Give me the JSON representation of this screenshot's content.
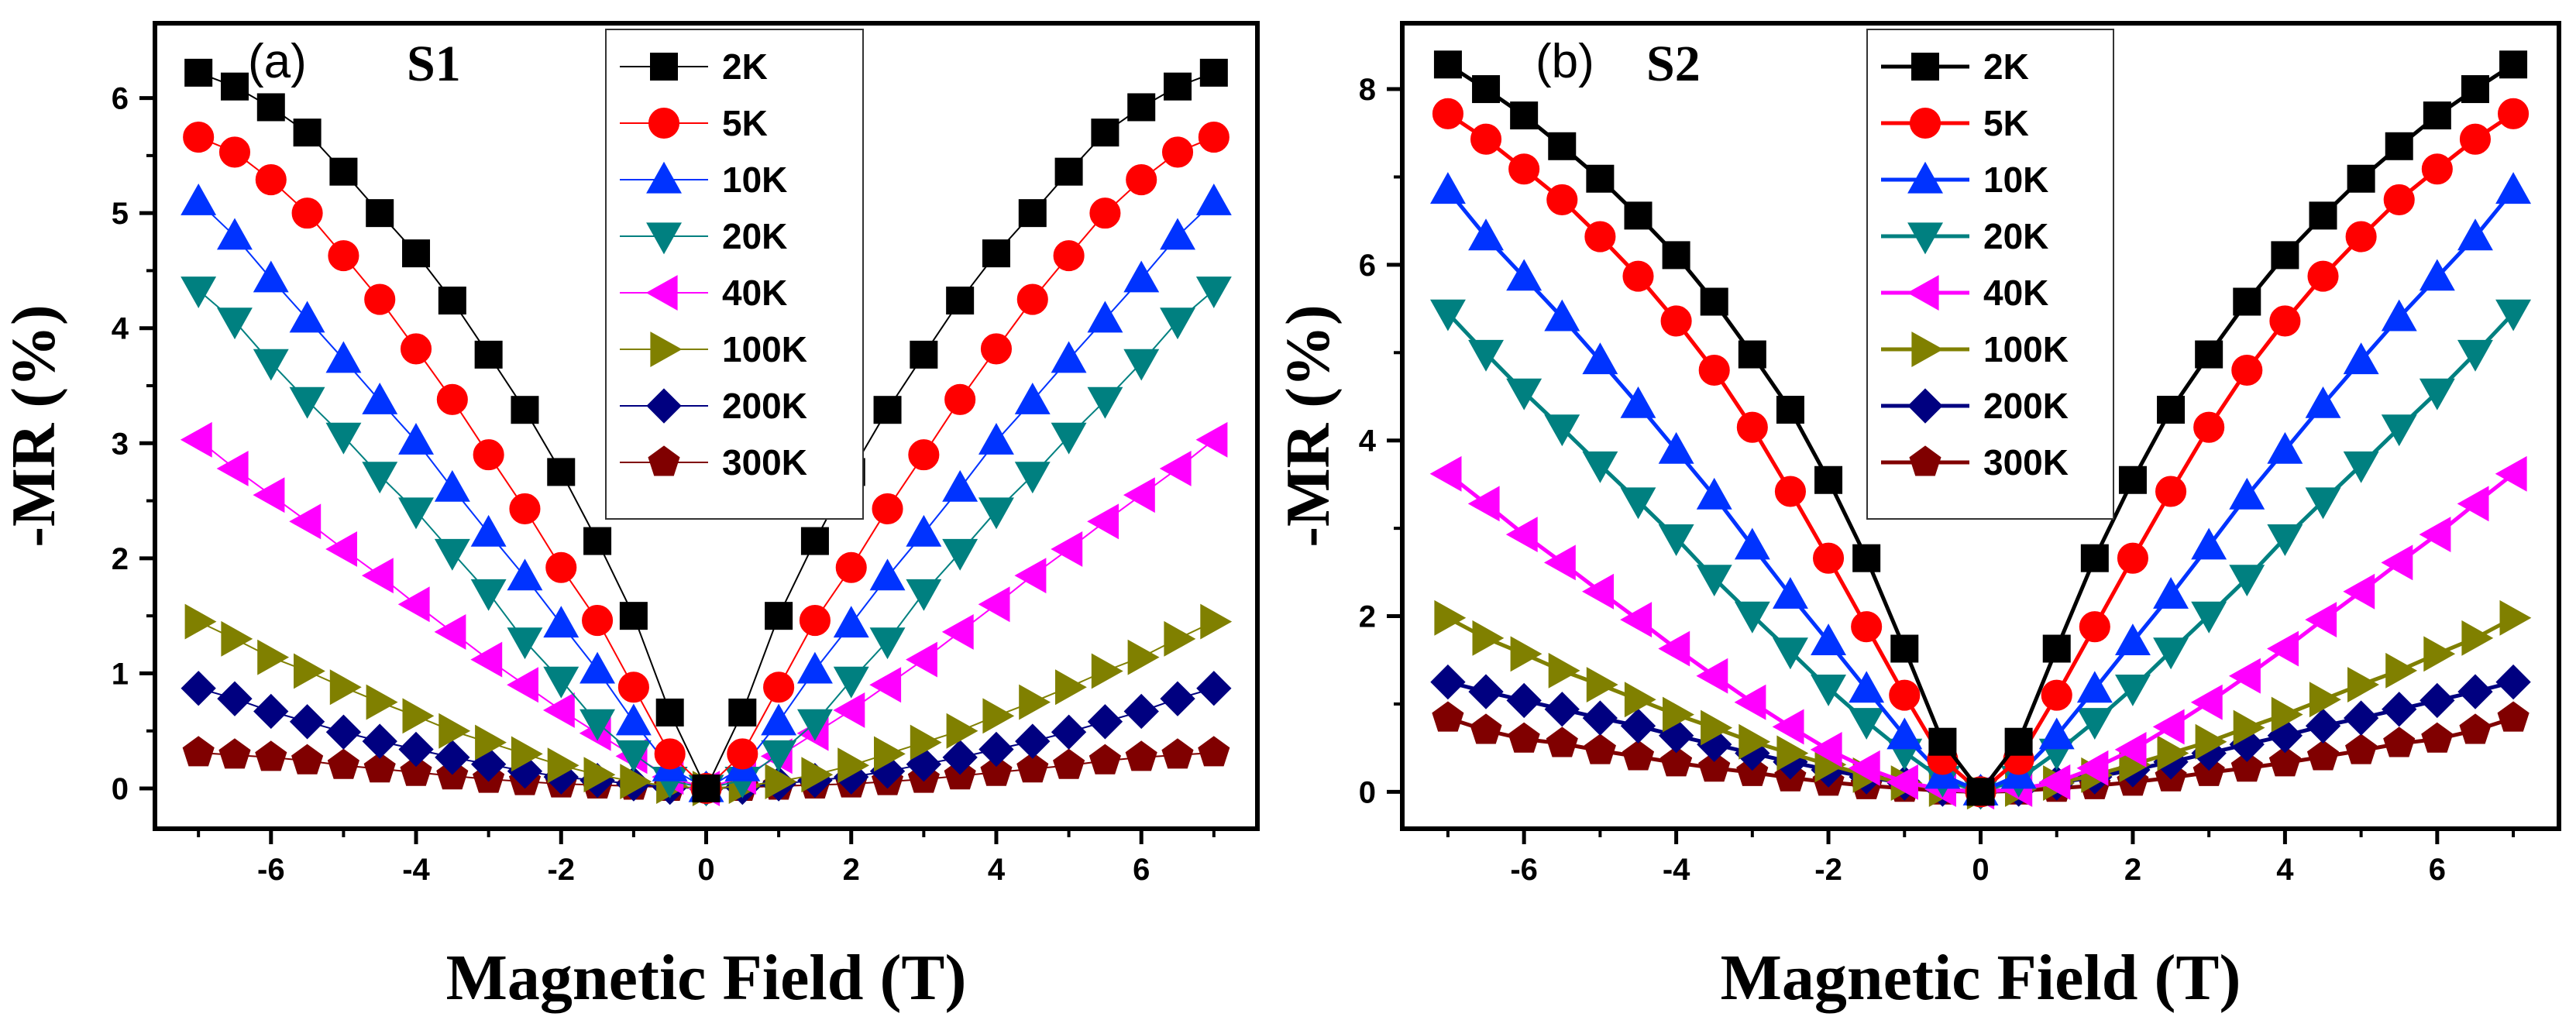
{
  "figure": {
    "panels": [
      "a",
      "b"
    ]
  },
  "chart_data": [
    {
      "type": "line",
      "panel_label": "(a)",
      "sample_label": "S1",
      "xlabel": "Magnetic Field (T)",
      "ylabel": "-MR (%)",
      "xlim": [
        -7.6,
        7.6
      ],
      "ylim": [
        -0.35,
        6.65
      ],
      "xticks": [
        -6,
        -4,
        -2,
        0,
        2,
        4,
        6
      ],
      "yticks": [
        0,
        1,
        2,
        3,
        4,
        5,
        6
      ],
      "x": [
        -7,
        -6.5,
        -6,
        -5.5,
        -5,
        -4.5,
        -4,
        -3.5,
        -3,
        -2.5,
        -2,
        -1.5,
        -1,
        -0.5,
        0,
        0.5,
        1,
        1.5,
        2,
        2.5,
        3,
        3.5,
        4,
        4.5,
        5,
        5.5,
        6,
        6.5,
        7
      ],
      "legend_position": "top-center",
      "series": [
        {
          "name": "2K",
          "color": "#000000",
          "marker": "square",
          "values": [
            6.22,
            6.1,
            5.92,
            5.7,
            5.36,
            5.0,
            4.65,
            4.24,
            3.77,
            3.29,
            2.75,
            2.15,
            1.5,
            0.66,
            0.0,
            0.66,
            1.5,
            2.15,
            2.75,
            3.29,
            3.77,
            4.24,
            4.65,
            5.0,
            5.36,
            5.7,
            5.92,
            6.1,
            6.22
          ]
        },
        {
          "name": "5K",
          "color": "#ff0000",
          "marker": "circle",
          "values": [
            5.66,
            5.53,
            5.29,
            5.0,
            4.63,
            4.25,
            3.82,
            3.38,
            2.9,
            2.43,
            1.92,
            1.46,
            0.88,
            0.3,
            0.0,
            0.3,
            0.88,
            1.46,
            1.92,
            2.43,
            2.9,
            3.38,
            3.82,
            4.25,
            4.63,
            5.0,
            5.29,
            5.53,
            5.66
          ]
        },
        {
          "name": "10K",
          "color": "#0033ff",
          "marker": "triangle-up",
          "values": [
            5.1,
            4.8,
            4.43,
            4.08,
            3.73,
            3.37,
            3.02,
            2.61,
            2.22,
            1.84,
            1.43,
            1.03,
            0.58,
            0.18,
            0.0,
            0.18,
            0.58,
            1.03,
            1.43,
            1.84,
            2.22,
            2.61,
            3.02,
            3.37,
            3.73,
            4.08,
            4.43,
            4.8,
            5.1
          ]
        },
        {
          "name": "20K",
          "color": "#008080",
          "marker": "triangle-down",
          "values": [
            4.33,
            4.06,
            3.7,
            3.37,
            3.06,
            2.72,
            2.41,
            2.05,
            1.7,
            1.28,
            0.94,
            0.57,
            0.3,
            0.07,
            0.0,
            0.07,
            0.3,
            0.57,
            0.94,
            1.28,
            1.7,
            2.05,
            2.41,
            2.72,
            3.06,
            3.37,
            3.7,
            4.06,
            4.33
          ]
        },
        {
          "name": "40K",
          "color": "#ff00ff",
          "marker": "triangle-left",
          "values": [
            3.03,
            2.78,
            2.55,
            2.32,
            2.08,
            1.85,
            1.6,
            1.36,
            1.12,
            0.9,
            0.68,
            0.48,
            0.28,
            0.1,
            0.0,
            0.1,
            0.28,
            0.48,
            0.68,
            0.9,
            1.12,
            1.36,
            1.6,
            1.85,
            2.08,
            2.32,
            2.55,
            2.78,
            3.03
          ]
        },
        {
          "name": "100K",
          "color": "#808000",
          "marker": "triangle-right",
          "values": [
            1.45,
            1.3,
            1.14,
            1.02,
            0.88,
            0.75,
            0.63,
            0.5,
            0.4,
            0.3,
            0.2,
            0.12,
            0.06,
            0.02,
            0.0,
            0.02,
            0.06,
            0.12,
            0.2,
            0.3,
            0.4,
            0.5,
            0.63,
            0.75,
            0.88,
            1.02,
            1.14,
            1.3,
            1.45
          ]
        },
        {
          "name": "200K",
          "color": "#000080",
          "marker": "diamond",
          "values": [
            0.87,
            0.78,
            0.67,
            0.58,
            0.49,
            0.41,
            0.34,
            0.27,
            0.21,
            0.15,
            0.1,
            0.07,
            0.04,
            0.01,
            0.0,
            0.01,
            0.04,
            0.07,
            0.1,
            0.15,
            0.21,
            0.27,
            0.34,
            0.41,
            0.49,
            0.58,
            0.67,
            0.78,
            0.87
          ]
        },
        {
          "name": "300K",
          "color": "#800000",
          "marker": "pentagon",
          "values": [
            0.31,
            0.29,
            0.27,
            0.24,
            0.2,
            0.17,
            0.14,
            0.11,
            0.08,
            0.06,
            0.04,
            0.03,
            0.02,
            0.01,
            0.0,
            0.01,
            0.02,
            0.03,
            0.04,
            0.06,
            0.08,
            0.11,
            0.14,
            0.17,
            0.2,
            0.24,
            0.27,
            0.29,
            0.31
          ]
        }
      ]
    },
    {
      "type": "line",
      "panel_label": "(b)",
      "sample_label": "S2",
      "xlabel": "Magnetic Field (T)",
      "ylabel": "-MR (%)",
      "xlim": [
        -7.6,
        7.6
      ],
      "ylim": [
        -0.42,
        8.75
      ],
      "xticks": [
        -6,
        -4,
        -2,
        0,
        2,
        4,
        6
      ],
      "yticks": [
        0,
        2,
        4,
        6,
        8
      ],
      "x": [
        -7,
        -6.5,
        -6,
        -5.5,
        -5,
        -4.5,
        -4,
        -3.5,
        -3,
        -2.5,
        -2,
        -1.5,
        -1,
        -0.5,
        0,
        0.5,
        1,
        1.5,
        2,
        2.5,
        3,
        3.5,
        4,
        4.5,
        5,
        5.5,
        6,
        6.5,
        7
      ],
      "legend_position": "top-center",
      "series": [
        {
          "name": "2K",
          "color": "#000000",
          "marker": "square",
          "values": [
            8.28,
            8.0,
            7.7,
            7.35,
            6.98,
            6.56,
            6.11,
            5.58,
            4.98,
            4.35,
            3.55,
            2.66,
            1.63,
            0.57,
            0.0,
            0.57,
            1.63,
            2.66,
            3.55,
            4.35,
            4.98,
            5.58,
            6.11,
            6.56,
            6.98,
            7.35,
            7.7,
            8.0,
            8.28
          ]
        },
        {
          "name": "5K",
          "color": "#ff0000",
          "marker": "circle",
          "values": [
            7.72,
            7.43,
            7.09,
            6.74,
            6.32,
            5.87,
            5.36,
            4.8,
            4.15,
            3.42,
            2.66,
            1.88,
            1.1,
            0.37,
            0.0,
            0.37,
            1.1,
            1.88,
            2.66,
            3.42,
            4.15,
            4.8,
            5.36,
            5.87,
            6.32,
            6.74,
            7.09,
            7.43,
            7.72
          ]
        },
        {
          "name": "10K",
          "color": "#0033ff",
          "marker": "triangle-up",
          "values": [
            6.85,
            6.32,
            5.86,
            5.4,
            4.91,
            4.41,
            3.89,
            3.37,
            2.8,
            2.24,
            1.71,
            1.17,
            0.64,
            0.19,
            0.0,
            0.19,
            0.64,
            1.17,
            1.71,
            2.24,
            2.8,
            3.37,
            3.89,
            4.41,
            4.91,
            5.4,
            5.86,
            6.32,
            6.85
          ]
        },
        {
          "name": "20K",
          "color": "#008080",
          "marker": "triangle-down",
          "values": [
            5.45,
            4.99,
            4.55,
            4.14,
            3.72,
            3.31,
            2.89,
            2.43,
            2.01,
            1.6,
            1.18,
            0.8,
            0.45,
            0.14,
            0.0,
            0.14,
            0.45,
            0.8,
            1.18,
            1.6,
            2.01,
            2.43,
            2.89,
            3.31,
            3.72,
            4.14,
            4.55,
            4.99,
            5.45
          ]
        },
        {
          "name": "40K",
          "color": "#ff00ff",
          "marker": "triangle-left",
          "values": [
            3.62,
            3.28,
            2.93,
            2.61,
            2.28,
            1.96,
            1.63,
            1.32,
            1.02,
            0.74,
            0.48,
            0.27,
            0.11,
            0.03,
            0.0,
            0.03,
            0.11,
            0.27,
            0.48,
            0.74,
            1.02,
            1.32,
            1.63,
            1.96,
            2.28,
            2.61,
            2.93,
            3.28,
            3.62
          ]
        },
        {
          "name": "100K",
          "color": "#808000",
          "marker": "triangle-right",
          "values": [
            1.98,
            1.75,
            1.57,
            1.38,
            1.22,
            1.05,
            0.88,
            0.73,
            0.57,
            0.44,
            0.31,
            0.19,
            0.1,
            0.03,
            0.0,
            0.03,
            0.1,
            0.19,
            0.31,
            0.44,
            0.57,
            0.73,
            0.88,
            1.05,
            1.22,
            1.38,
            1.57,
            1.75,
            1.98
          ]
        },
        {
          "name": "200K",
          "color": "#000080",
          "marker": "diamond",
          "values": [
            1.25,
            1.14,
            1.04,
            0.94,
            0.84,
            0.75,
            0.64,
            0.54,
            0.44,
            0.34,
            0.25,
            0.17,
            0.1,
            0.03,
            0.0,
            0.03,
            0.1,
            0.17,
            0.25,
            0.34,
            0.44,
            0.54,
            0.64,
            0.75,
            0.84,
            0.94,
            1.04,
            1.14,
            1.25
          ]
        },
        {
          "name": "300K",
          "color": "#800000",
          "marker": "pentagon",
          "values": [
            0.84,
            0.7,
            0.6,
            0.55,
            0.47,
            0.4,
            0.33,
            0.27,
            0.22,
            0.16,
            0.11,
            0.07,
            0.04,
            0.01,
            0.0,
            0.01,
            0.04,
            0.07,
            0.11,
            0.16,
            0.22,
            0.27,
            0.33,
            0.4,
            0.47,
            0.55,
            0.6,
            0.7,
            0.84
          ]
        }
      ]
    }
  ]
}
